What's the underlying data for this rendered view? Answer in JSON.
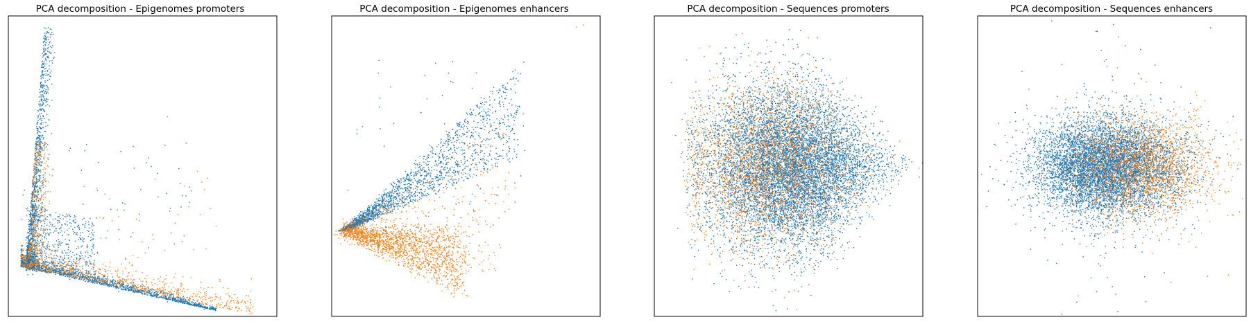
{
  "chart_data": [
    {
      "type": "scatter",
      "title": "PCA decomposition - Epigenomes promoters",
      "xlabel": "",
      "ylabel": "",
      "xlim": [
        -0.05,
        1.05
      ],
      "ylim": [
        -0.2,
        1.0
      ],
      "axis_ticks": false,
      "series": [
        {
          "color": "#1f77b4",
          "shape": "L-arm",
          "apex": [
            0.0,
            0.0
          ],
          "points_sampled": [
            [
              0.0,
              0.0
            ],
            [
              0.05,
              0.15
            ],
            [
              0.06,
              0.3
            ],
            [
              0.07,
              0.5
            ],
            [
              0.08,
              0.65
            ],
            [
              0.1,
              0.85
            ],
            [
              0.12,
              0.95
            ],
            [
              0.2,
              -0.05
            ],
            [
              0.4,
              -0.1
            ],
            [
              0.6,
              -0.14
            ],
            [
              0.75,
              -0.17
            ],
            [
              0.18,
              0.2
            ],
            [
              0.3,
              0.05
            ],
            [
              0.45,
              0.12
            ],
            [
              0.66,
              0.1
            ]
          ]
        },
        {
          "color": "#ff7f0e",
          "shape": "L-arm",
          "apex": [
            0.0,
            0.0
          ],
          "points_sampled": [
            [
              0.03,
              0.05
            ],
            [
              0.15,
              0.02
            ],
            [
              0.35,
              -0.05
            ],
            [
              0.55,
              -0.1
            ],
            [
              0.8,
              -0.16
            ],
            [
              0.95,
              -0.16
            ],
            [
              0.12,
              0.3
            ],
            [
              0.6,
              0.6
            ],
            [
              0.4,
              0.2
            ]
          ]
        }
      ]
    },
    {
      "type": "scatter",
      "title": "PCA decomposition - Epigenomes enhancers",
      "xlabel": "",
      "ylabel": "",
      "xlim": [
        -0.05,
        1.05
      ],
      "ylim": [
        -0.4,
        1.0
      ],
      "axis_ticks": false,
      "series": [
        {
          "color": "#1f77b4",
          "shape": "wedge-upper",
          "apex": [
            0.0,
            0.0
          ],
          "points_sampled": [
            [
              0.0,
              0.0
            ],
            [
              0.1,
              0.1
            ],
            [
              0.2,
              0.2
            ],
            [
              0.35,
              0.4
            ],
            [
              0.5,
              0.55
            ],
            [
              0.6,
              0.65
            ],
            [
              0.7,
              0.75
            ],
            [
              0.25,
              0.15
            ],
            [
              0.4,
              0.3
            ]
          ]
        },
        {
          "color": "#ff7f0e",
          "shape": "wedge-lower",
          "apex": [
            0.0,
            0.0
          ],
          "points_sampled": [
            [
              0.05,
              -0.02
            ],
            [
              0.15,
              -0.1
            ],
            [
              0.3,
              -0.2
            ],
            [
              0.4,
              -0.28
            ],
            [
              0.5,
              -0.3
            ],
            [
              0.45,
              0.1
            ],
            [
              0.6,
              0.4
            ],
            [
              0.7,
              0.2
            ],
            [
              0.95,
              0.95
            ]
          ]
        }
      ]
    },
    {
      "type": "scatter",
      "title": "PCA decomposition - Sequences promoters",
      "xlabel": "",
      "ylabel": "",
      "xlim": [
        -1.05,
        1.05
      ],
      "ylim": [
        -1.0,
        1.0
      ],
      "axis_ticks": false,
      "series": [
        {
          "color": "#1f77b4",
          "shape": "cloud",
          "center": [
            0.0,
            0.0
          ],
          "points_sampled": [
            [
              -0.6,
              0.3
            ],
            [
              -0.3,
              -0.4
            ],
            [
              0.2,
              0.1
            ],
            [
              0.6,
              0.0
            ],
            [
              0.8,
              -0.1
            ],
            [
              0.0,
              0.7
            ],
            [
              0.1,
              -0.8
            ]
          ]
        },
        {
          "color": "#ff7f0e",
          "shape": "cloud",
          "center": [
            -0.2,
            0.0
          ],
          "points_sampled": [
            [
              -0.5,
              0.4
            ],
            [
              -0.4,
              -0.3
            ],
            [
              0.0,
              0.2
            ],
            [
              0.3,
              -0.2
            ],
            [
              0.5,
              0.3
            ],
            [
              -0.1,
              -0.5
            ]
          ]
        }
      ]
    },
    {
      "type": "scatter",
      "title": "PCA decomposition - Sequences enhancers",
      "xlabel": "",
      "ylabel": "",
      "xlim": [
        -1.05,
        1.05
      ],
      "ylim": [
        -1.0,
        1.0
      ],
      "axis_ticks": false,
      "series": [
        {
          "color": "#1f77b4",
          "shape": "cloud",
          "center": [
            0.0,
            0.0
          ],
          "points_sampled": [
            [
              -0.5,
              0.2
            ],
            [
              -0.3,
              -0.3
            ],
            [
              0.1,
              0.1
            ],
            [
              0.4,
              -0.1
            ],
            [
              0.0,
              0.6
            ],
            [
              0.0,
              -0.8
            ]
          ]
        },
        {
          "color": "#ff7f0e",
          "shape": "cloud",
          "center": [
            0.3,
            0.05
          ],
          "points_sampled": [
            [
              0.2,
              0.3
            ],
            [
              0.5,
              0.0
            ],
            [
              0.7,
              -0.1
            ],
            [
              0.8,
              0.2
            ],
            [
              0.0,
              -0.2
            ],
            [
              0.6,
              -0.5
            ]
          ]
        }
      ]
    }
  ]
}
